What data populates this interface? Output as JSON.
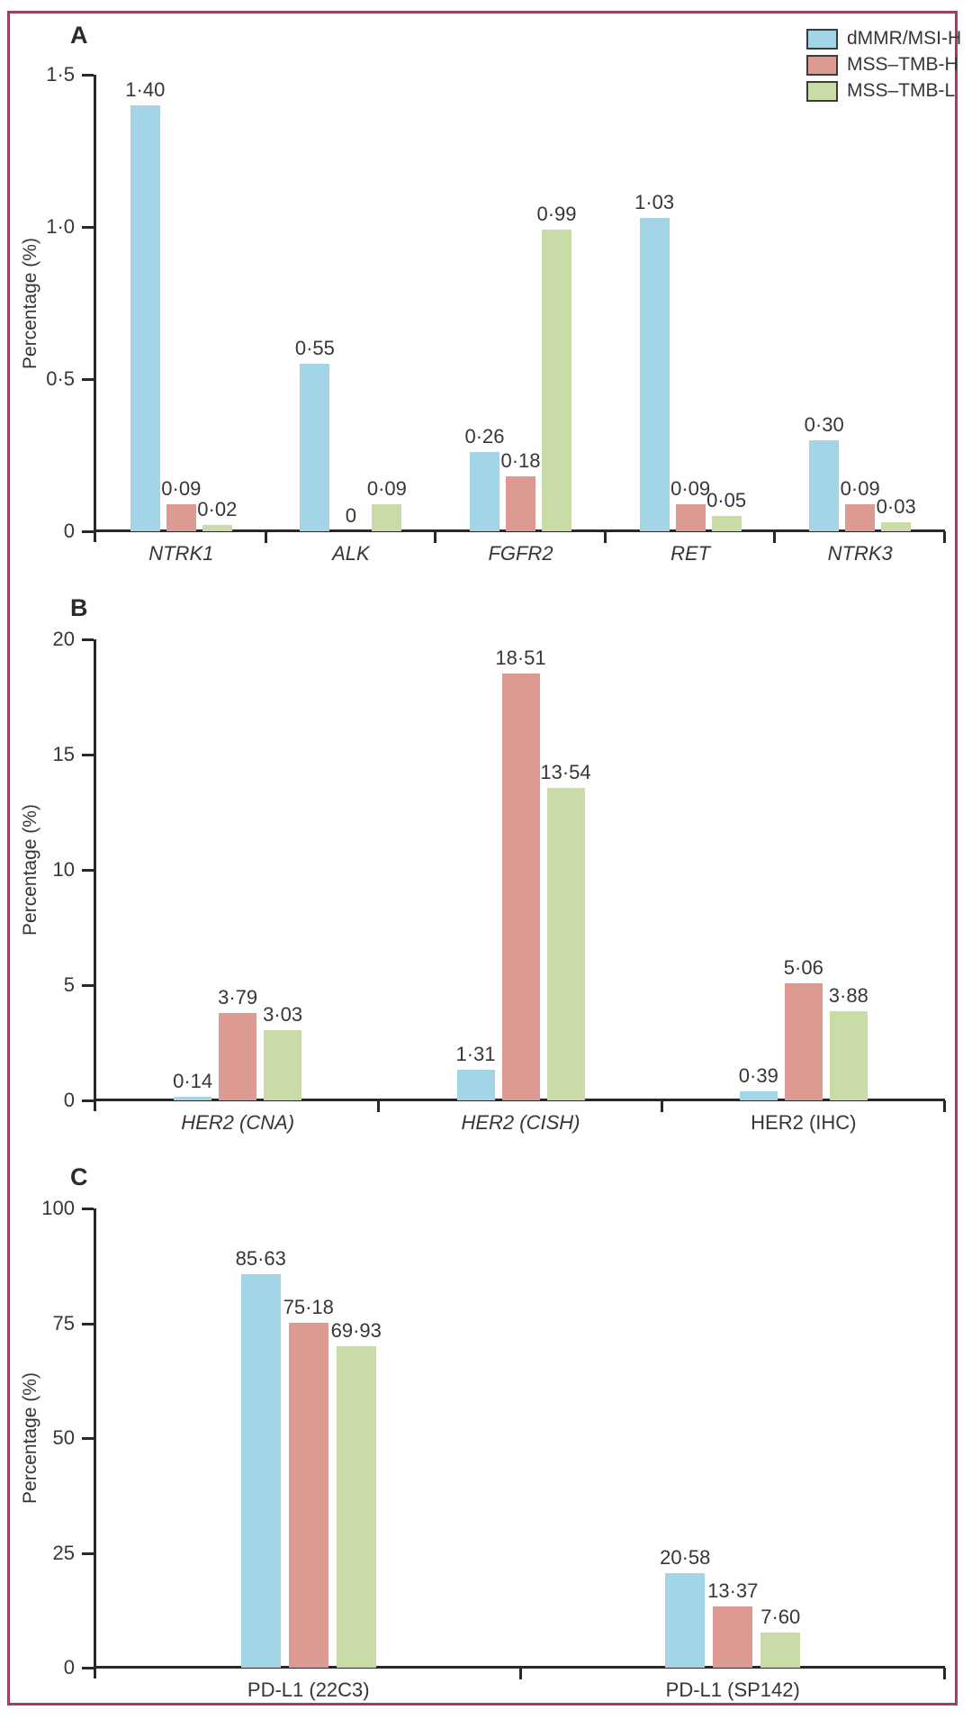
{
  "figure": {
    "border_color": "#a13e60",
    "axis_color": "#2b2727",
    "text_color": "#3a3532",
    "background": "#ffffff"
  },
  "legend": {
    "position": "top-right",
    "items": [
      {
        "label": "dMMR/MSI-H",
        "color": "#a3d5e6"
      },
      {
        "label": "MSS–TMB-H",
        "color": "#dc9a92"
      },
      {
        "label": "MSS–TMB-L",
        "color": "#c9dba6"
      }
    ]
  },
  "chart_data": [
    {
      "panel_label": "A",
      "type": "bar",
      "title": "",
      "xlabel": "",
      "ylabel": "Percentage (%)",
      "ylim": [
        0,
        1.5
      ],
      "grid": false,
      "ytick_labels": [
        "1·5",
        "1·0",
        "0·5",
        "0"
      ],
      "categories": [
        "NTRK1",
        "ALK",
        "FGFR2",
        "RET",
        "NTRK3"
      ],
      "categories_italic": [
        true,
        true,
        true,
        true,
        true
      ],
      "series": [
        {
          "name": "dMMR/MSI-H",
          "color": "#a3d5e6",
          "values": [
            1.4,
            0.55,
            0.26,
            1.03,
            0.3
          ],
          "labels": [
            "1·40",
            "0·55",
            "0·26",
            "1·03",
            "0·30"
          ]
        },
        {
          "name": "MSS–TMB-H",
          "color": "#dc9a92",
          "values": [
            0.09,
            0,
            0.18,
            0.09,
            0.09
          ],
          "labels": [
            "0·09",
            "0",
            "0·18",
            "0·09",
            "0·09"
          ]
        },
        {
          "name": "MSS–TMB-L",
          "color": "#c9dba6",
          "values": [
            0.02,
            0.09,
            0.99,
            0.05,
            0.03
          ],
          "labels": [
            "0·02",
            "0·09",
            "0·99",
            "0·05",
            "0·03"
          ]
        }
      ]
    },
    {
      "panel_label": "B",
      "type": "bar",
      "title": "",
      "xlabel": "",
      "ylabel": "Percentage (%)",
      "ylim": [
        0,
        20
      ],
      "grid": false,
      "ytick_labels": [
        "20",
        "15",
        "10",
        "5",
        "0"
      ],
      "categories": [
        "HER2 (CNA)",
        "HER2 (CISH)",
        "HER2 (IHC)"
      ],
      "categories_italic": [
        true,
        true,
        false
      ],
      "series": [
        {
          "name": "dMMR/MSI-H",
          "color": "#a3d5e6",
          "values": [
            0.14,
            1.31,
            0.39
          ],
          "labels": [
            "0·14",
            "1·31",
            "0·39"
          ]
        },
        {
          "name": "MSS–TMB-H",
          "color": "#dc9a92",
          "values": [
            3.79,
            18.51,
            5.06
          ],
          "labels": [
            "3·79",
            "18·51",
            "5·06"
          ]
        },
        {
          "name": "MSS–TMB-L",
          "color": "#c9dba6",
          "values": [
            3.03,
            13.54,
            3.88
          ],
          "labels": [
            "3·03",
            "13·54",
            "3·88"
          ]
        }
      ]
    },
    {
      "panel_label": "C",
      "type": "bar",
      "title": "",
      "xlabel": "",
      "ylabel": "Percentage (%)",
      "ylim": [
        0,
        100
      ],
      "grid": false,
      "ytick_labels": [
        "100",
        "75",
        "50",
        "25",
        "0"
      ],
      "categories": [
        "PD-L1 (22C3)",
        "PD-L1 (SP142)"
      ],
      "categories_italic": [
        false,
        false
      ],
      "series": [
        {
          "name": "dMMR/MSI-H",
          "color": "#a3d5e6",
          "values": [
            85.63,
            20.58
          ],
          "labels": [
            "85·63",
            "20·58"
          ]
        },
        {
          "name": "MSS–TMB-H",
          "color": "#dc9a92",
          "values": [
            75.18,
            13.37
          ],
          "labels": [
            "75·18",
            "13·37"
          ]
        },
        {
          "name": "MSS–TMB-L",
          "color": "#c9dba6",
          "values": [
            69.93,
            7.6
          ],
          "labels": [
            "69·93",
            "7·60"
          ]
        }
      ]
    }
  ]
}
